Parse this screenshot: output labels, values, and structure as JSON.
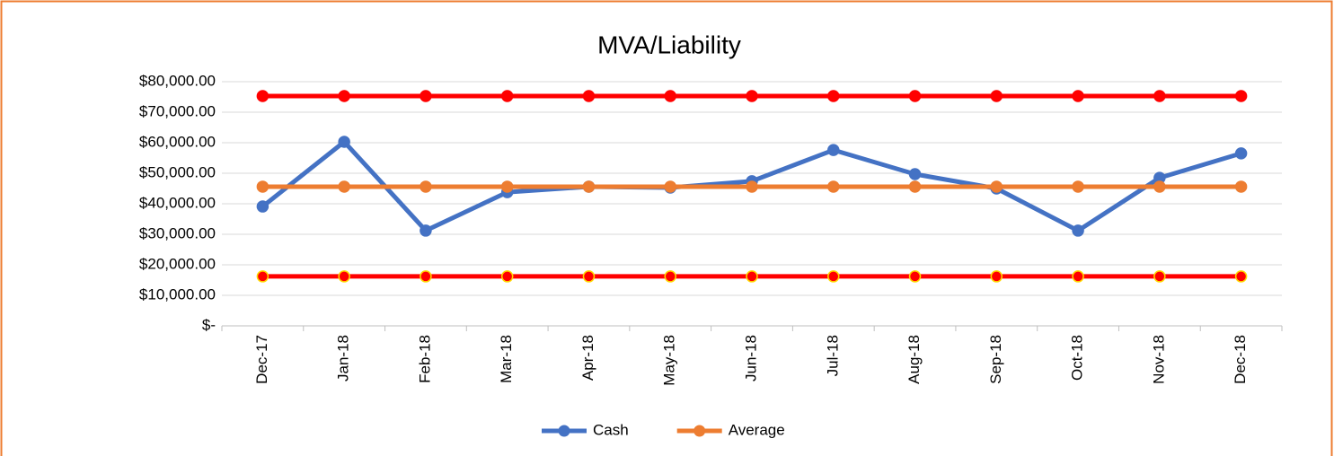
{
  "chart_data": {
    "type": "line",
    "title": "MVA/Liability",
    "categories": [
      "Dec-17",
      "Jan-18",
      "Feb-18",
      "Mar-18",
      "Apr-18",
      "May-18",
      "Jun-18",
      "Jul-18",
      "Aug-18",
      "Sep-18",
      "Oct-18",
      "Nov-18",
      "Dec-18"
    ],
    "series": [
      {
        "name": "Cash",
        "color": "#4472c4",
        "values": [
          39100,
          60300,
          31200,
          43800,
          45600,
          45300,
          47400,
          57600,
          49700,
          45000,
          31200,
          48500,
          56500
        ]
      },
      {
        "name": "Average",
        "color": "#ed7d31",
        "values": [
          45600,
          45600,
          45600,
          45600,
          45600,
          45600,
          45600,
          45600,
          45600,
          45600,
          45600,
          45600,
          45600
        ]
      },
      {
        "color": "#ff0000",
        "values": [
          75300,
          75300,
          75300,
          75300,
          75300,
          75300,
          75300,
          75300,
          75300,
          75300,
          75300,
          75300,
          75300
        ]
      },
      {
        "color": "#ff0000",
        "marker_edge_color": "#ffd700",
        "values": [
          16200,
          16200,
          16200,
          16200,
          16200,
          16200,
          16200,
          16200,
          16200,
          16200,
          16200,
          16200,
          16200
        ]
      }
    ],
    "ylim": [
      0,
      80000
    ],
    "yticks": [
      {
        "value": 0,
        "label": "$-"
      },
      {
        "value": 10000,
        "label": "$10,000.00"
      },
      {
        "value": 20000,
        "label": "$20,000.00"
      },
      {
        "value": 30000,
        "label": "$30,000.00"
      },
      {
        "value": 40000,
        "label": "$40,000.00"
      },
      {
        "value": 50000,
        "label": "$50,000.00"
      },
      {
        "value": 60000,
        "label": "$60,000.00"
      },
      {
        "value": 70000,
        "label": "$70,000.00"
      },
      {
        "value": 80000,
        "label": "$80,000.00"
      }
    ],
    "grid": true,
    "legend": "bottom"
  }
}
